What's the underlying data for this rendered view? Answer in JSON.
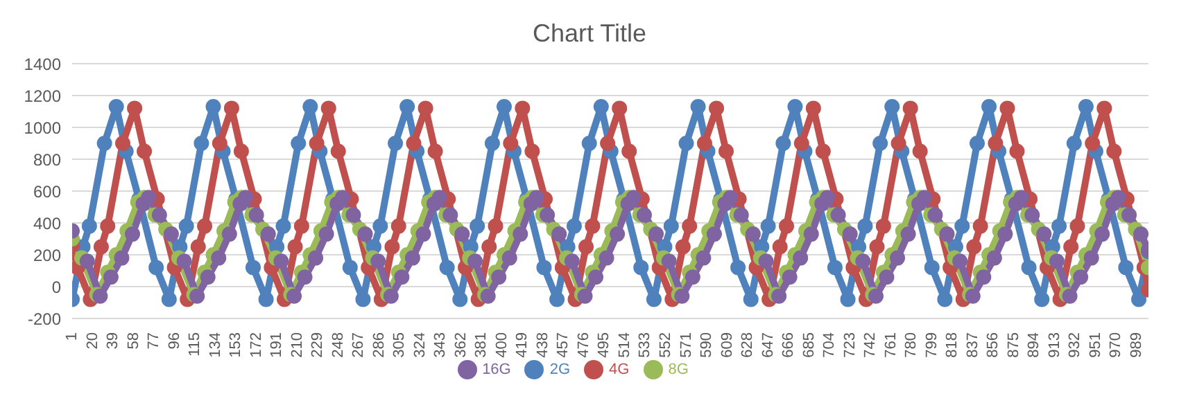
{
  "chart_data": {
    "type": "line",
    "title": "Chart Title",
    "xlim": [
      1,
      1000
    ],
    "xticks": [
      1,
      20,
      39,
      58,
      77,
      96,
      115,
      134,
      153,
      172,
      191,
      210,
      229,
      248,
      267,
      286,
      305,
      324,
      343,
      362,
      381,
      400,
      419,
      438,
      457,
      476,
      495,
      514,
      533,
      552,
      571,
      590,
      609,
      628,
      647,
      666,
      685,
      704,
      723,
      742,
      761,
      780,
      799,
      818,
      837,
      856,
      875,
      894,
      913,
      932,
      951,
      970,
      989
    ],
    "ylim": [
      -200,
      1400
    ],
    "yticks": [
      -200,
      0,
      200,
      400,
      600,
      800,
      1000,
      1200,
      1400
    ],
    "grid": "y",
    "legend": "bottom",
    "marker": "circle",
    "line_style": "solid",
    "series": [
      {
        "name": "2G",
        "color": "#4f81bd",
        "x": [
          1,
          11,
          17,
          31,
          42,
          51,
          63,
          79,
          91,
          101,
          107,
          121,
          132,
          141,
          153,
          169,
          181,
          191,
          197,
          211,
          222,
          231,
          243,
          259,
          271,
          281,
          287,
          301,
          312,
          321,
          333,
          349,
          361,
          371,
          377,
          391,
          402,
          411,
          423,
          439,
          451,
          461,
          467,
          481,
          492,
          501,
          513,
          529,
          541,
          551,
          557,
          571,
          582,
          591,
          603,
          619,
          631,
          641,
          647,
          661,
          672,
          681,
          693,
          709,
          721,
          731,
          737,
          751,
          762,
          771,
          783,
          799,
          811,
          821,
          827,
          841,
          852,
          861,
          873,
          889,
          901,
          911,
          917,
          931,
          942,
          951,
          963,
          979,
          991,
          1000
        ],
        "values": [
          -80,
          250,
          380,
          900,
          1130,
          850,
          550,
          120,
          -80,
          250,
          380,
          900,
          1130,
          850,
          550,
          120,
          -80,
          250,
          380,
          900,
          1130,
          850,
          550,
          120,
          -80,
          250,
          380,
          900,
          1130,
          850,
          550,
          120,
          -80,
          250,
          380,
          900,
          1130,
          850,
          550,
          120,
          -80,
          250,
          380,
          900,
          1130,
          850,
          550,
          120,
          -80,
          250,
          380,
          900,
          1130,
          850,
          550,
          120,
          -80,
          250,
          380,
          900,
          1130,
          850,
          550,
          120,
          -80,
          250,
          380,
          900,
          1130,
          850,
          550,
          120,
          -80,
          250,
          380,
          900,
          1130,
          850,
          550,
          120,
          -80,
          250,
          380,
          900,
          1130,
          850,
          550,
          120,
          -80,
          220
        ]
      },
      {
        "name": "4G",
        "color": "#c0504d",
        "x": [
          1,
          6,
          18,
          28,
          34,
          48,
          59,
          68,
          80,
          96,
          108,
          118,
          124,
          138,
          149,
          158,
          170,
          186,
          198,
          208,
          214,
          228,
          239,
          248,
          260,
          276,
          288,
          298,
          304,
          318,
          329,
          338,
          350,
          366,
          378,
          388,
          394,
          408,
          419,
          428,
          440,
          456,
          468,
          478,
          484,
          498,
          509,
          518,
          530,
          546,
          558,
          568,
          574,
          588,
          599,
          608,
          620,
          636,
          648,
          658,
          664,
          678,
          689,
          698,
          710,
          726,
          738,
          748,
          754,
          768,
          779,
          788,
          800,
          816,
          828,
          838,
          844,
          858,
          869,
          878,
          890,
          906,
          918,
          928,
          934,
          948,
          959,
          968,
          980,
          996,
          1000
        ],
        "values": [
          260,
          120,
          -80,
          250,
          380,
          900,
          1120,
          850,
          550,
          120,
          -80,
          250,
          380,
          900,
          1120,
          850,
          550,
          120,
          -80,
          250,
          380,
          900,
          1120,
          850,
          550,
          120,
          -80,
          250,
          380,
          900,
          1120,
          850,
          550,
          120,
          -80,
          250,
          380,
          900,
          1120,
          850,
          550,
          120,
          -80,
          250,
          380,
          900,
          1120,
          850,
          550,
          120,
          -80,
          250,
          380,
          900,
          1120,
          850,
          550,
          120,
          -80,
          250,
          380,
          900,
          1120,
          850,
          550,
          120,
          -80,
          250,
          380,
          900,
          1120,
          850,
          550,
          120,
          -80,
          250,
          380,
          900,
          1120,
          850,
          550,
          120,
          -80,
          250,
          380,
          900,
          1120,
          850,
          550,
          120,
          -20
        ]
      },
      {
        "name": "8G",
        "color": "#9bbb59",
        "x": [
          1,
          10,
          24,
          34,
          42,
          52,
          62,
          68,
          78,
          88,
          100,
          114,
          124,
          132,
          142,
          152,
          158,
          168,
          178,
          190,
          204,
          214,
          222,
          232,
          242,
          248,
          258,
          268,
          280,
          294,
          304,
          312,
          322,
          332,
          338,
          348,
          358,
          370,
          384,
          394,
          402,
          412,
          422,
          428,
          438,
          448,
          460,
          474,
          484,
          492,
          502,
          512,
          518,
          528,
          538,
          550,
          564,
          574,
          582,
          592,
          602,
          608,
          618,
          628,
          640,
          654,
          664,
          672,
          682,
          692,
          698,
          708,
          718,
          730,
          744,
          754,
          762,
          772,
          782,
          788,
          798,
          808,
          820,
          834,
          844,
          852,
          862,
          872,
          878,
          888,
          898,
          910,
          924,
          934,
          942,
          952,
          962,
          968,
          978,
          988,
          1000
        ],
        "values": [
          300,
          180,
          -50,
          90,
          200,
          350,
          530,
          560,
          450,
          360,
          180,
          -50,
          90,
          200,
          350,
          530,
          560,
          450,
          360,
          180,
          -50,
          90,
          200,
          350,
          530,
          560,
          450,
          360,
          180,
          -50,
          90,
          200,
          350,
          530,
          560,
          450,
          360,
          180,
          -50,
          90,
          200,
          350,
          530,
          560,
          450,
          360,
          180,
          -50,
          90,
          200,
          350,
          530,
          560,
          450,
          360,
          180,
          -50,
          90,
          200,
          350,
          530,
          560,
          450,
          360,
          180,
          -50,
          90,
          200,
          350,
          530,
          560,
          450,
          360,
          180,
          -50,
          90,
          200,
          350,
          530,
          560,
          450,
          360,
          180,
          -50,
          90,
          200,
          350,
          530,
          560,
          450,
          360,
          180,
          -50,
          90,
          200,
          350,
          530,
          560,
          450,
          360,
          120
        ]
      },
      {
        "name": "16G",
        "color": "#8064a2",
        "x": [
          1,
          15,
          27,
          37,
          47,
          57,
          67,
          72,
          82,
          93,
          105,
          117,
          127,
          137,
          147,
          157,
          162,
          172,
          183,
          195,
          207,
          217,
          227,
          237,
          247,
          252,
          262,
          273,
          285,
          297,
          307,
          317,
          327,
          337,
          342,
          352,
          363,
          375,
          387,
          397,
          407,
          417,
          427,
          432,
          442,
          453,
          465,
          477,
          487,
          497,
          507,
          517,
          522,
          532,
          543,
          555,
          567,
          577,
          587,
          597,
          607,
          612,
          622,
          633,
          645,
          657,
          667,
          677,
          687,
          697,
          702,
          712,
          723,
          735,
          747,
          757,
          767,
          777,
          787,
          792,
          802,
          813,
          825,
          837,
          847,
          857,
          867,
          877,
          882,
          892,
          903,
          915,
          927,
          937,
          947,
          957,
          967,
          972,
          982,
          993,
          1000
        ],
        "values": [
          350,
          160,
          -60,
          60,
          180,
          330,
          520,
          560,
          450,
          330,
          160,
          -60,
          60,
          180,
          330,
          520,
          560,
          450,
          330,
          160,
          -60,
          60,
          180,
          330,
          520,
          560,
          450,
          330,
          160,
          -60,
          60,
          180,
          330,
          520,
          560,
          450,
          330,
          160,
          -60,
          60,
          180,
          330,
          520,
          560,
          450,
          330,
          160,
          -60,
          60,
          180,
          330,
          520,
          560,
          450,
          330,
          160,
          -60,
          60,
          180,
          330,
          520,
          560,
          450,
          330,
          160,
          -60,
          60,
          180,
          330,
          520,
          560,
          450,
          330,
          160,
          -60,
          60,
          180,
          330,
          520,
          560,
          450,
          330,
          160,
          -60,
          60,
          180,
          330,
          520,
          560,
          450,
          330,
          160,
          -60,
          60,
          180,
          330,
          520,
          560,
          450,
          330,
          230
        ]
      }
    ]
  }
}
